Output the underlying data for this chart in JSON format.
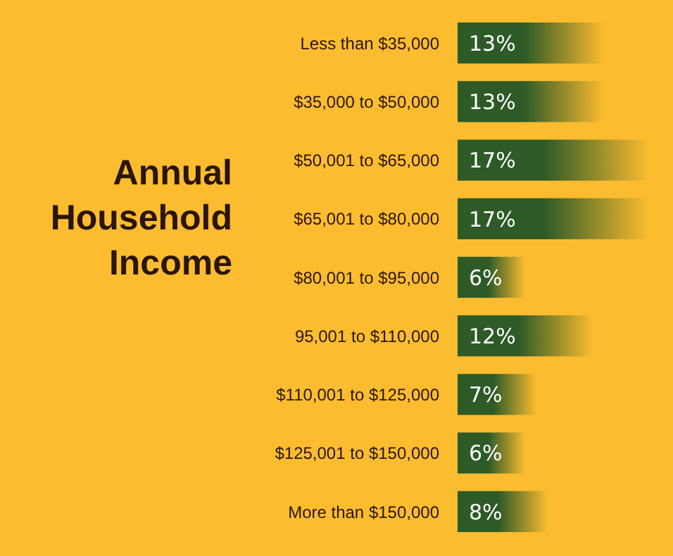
{
  "chart_data": {
    "type": "bar",
    "orientation": "horizontal",
    "title": "Annual Household Income",
    "categories": [
      "Less than $35,000",
      "$35,000 to $50,000",
      "$50,001 to $65,000",
      "$65,001 to $80,000",
      "$80,001 to $95,000",
      "95,001 to $110,000",
      "$110,001 to $125,000",
      "$125,001 to $150,000",
      "More than $150,000"
    ],
    "values": [
      13,
      13,
      17,
      17,
      6,
      12,
      7,
      6,
      8
    ],
    "value_labels": [
      "13%",
      "13%",
      "17%",
      "17%",
      "6%",
      "12%",
      "7%",
      "6%",
      "8%"
    ],
    "color": "#2d5a27"
  }
}
